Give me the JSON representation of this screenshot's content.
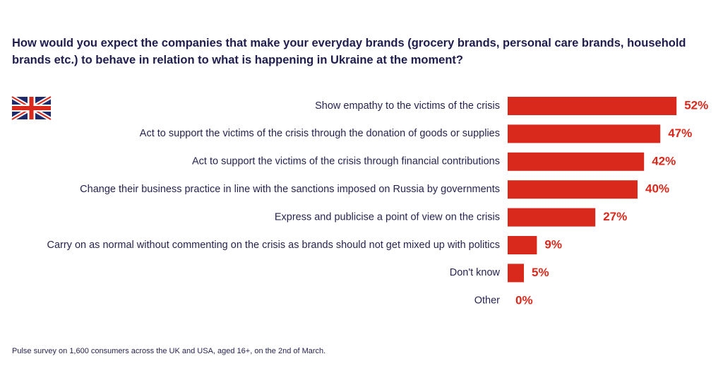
{
  "chart_data": {
    "type": "bar",
    "orientation": "horizontal",
    "title": "How would you expect the companies that make your everyday brands (grocery brands, personal care brands, household brands etc.) to behave in relation to what is happening in Ukraine at the moment?",
    "categories": [
      "Show empathy to the victims of the crisis",
      "Act to support the victims of the crisis through the donation of goods or supplies",
      "Act to support the victims of the crisis through financial contributions",
      "Change their business practice in line with the sanctions imposed on Russia by governments",
      "Express and publicise a point of view on the crisis",
      "Carry on as normal without commenting on the crisis as brands should not get mixed up with politics",
      "Don't know",
      "Other"
    ],
    "values": [
      52,
      47,
      42,
      40,
      27,
      9,
      5,
      0
    ],
    "value_labels": [
      "52%",
      "47%",
      "42%",
      "40%",
      "27%",
      "9%",
      "5%",
      "0%"
    ],
    "color": "#d9291c",
    "footnote": "Pulse survey on 1,600 consumers across the UK and USA, aged 16+, on the 2nd of March."
  }
}
